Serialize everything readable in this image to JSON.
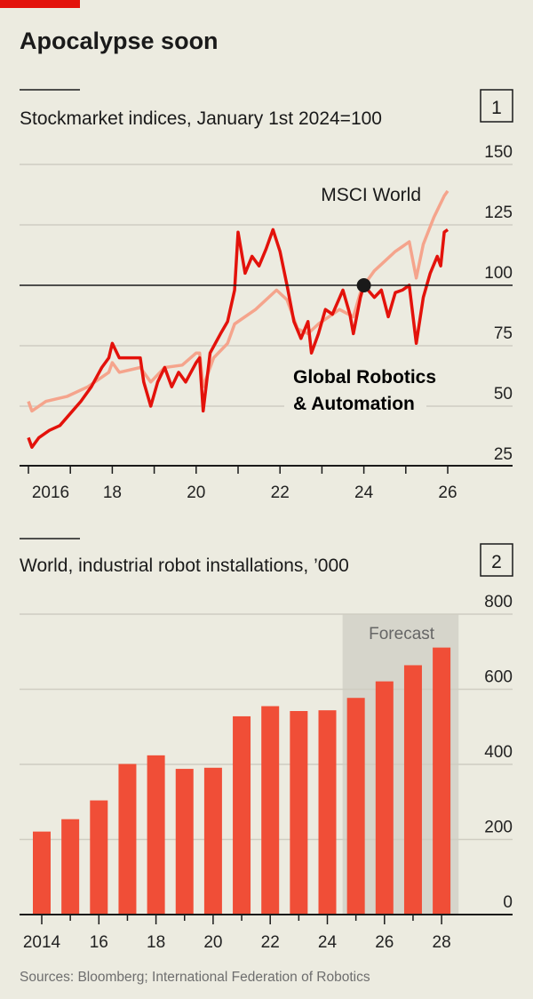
{
  "title": "Apocalypse soon",
  "source": "Sources: Bloomberg; International Federation of Robotics",
  "colors": {
    "background": "#ecebe0",
    "robotics": "#e3120b",
    "msci": "#f5a48c",
    "bars": "#f04e37",
    "forecast_shade": "#d6d5cb",
    "brand_red": "#e3120b"
  },
  "chart_data": [
    {
      "type": "line",
      "number": "1",
      "title": "Stockmarket indices, January 1st 2024=100",
      "ylim": [
        25,
        150
      ],
      "yticks": [
        "150",
        "125",
        "100",
        "75",
        "50",
        "25"
      ],
      "ytick_values": [
        150,
        125,
        100,
        75,
        50,
        25
      ],
      "xticks": [
        "2016",
        "18",
        "20",
        "22",
        "24",
        "26"
      ],
      "xtick_years": [
        2016,
        2018,
        2020,
        2022,
        2024,
        2026
      ],
      "xlim": [
        "2016-01",
        "2026-01"
      ],
      "reference_line": 100,
      "marker": {
        "date": "2024-01",
        "value": 100
      },
      "grid": true,
      "series": [
        {
          "name": "MSCI World",
          "color": "#f5a48c",
          "points": [
            [
              "2016-01",
              52
            ],
            [
              "2016-02",
              48
            ],
            [
              "2016-06",
              52
            ],
            [
              "2016-12",
              54
            ],
            [
              "2017-06",
              58
            ],
            [
              "2017-12",
              64
            ],
            [
              "2018-01",
              68
            ],
            [
              "2018-03",
              64
            ],
            [
              "2018-09",
              66
            ],
            [
              "2018-12",
              60
            ],
            [
              "2019-04",
              66
            ],
            [
              "2019-09",
              67
            ],
            [
              "2020-01",
              72
            ],
            [
              "2020-02",
              72
            ],
            [
              "2020-03",
              58
            ],
            [
              "2020-06",
              70
            ],
            [
              "2020-10",
              76
            ],
            [
              "2020-12",
              84
            ],
            [
              "2021-06",
              90
            ],
            [
              "2021-12",
              98
            ],
            [
              "2022-03",
              94
            ],
            [
              "2022-06",
              82
            ],
            [
              "2022-09",
              80
            ],
            [
              "2022-12",
              84
            ],
            [
              "2023-06",
              90
            ],
            [
              "2023-10",
              87
            ],
            [
              "2023-12",
              97
            ],
            [
              "2024-01",
              100
            ],
            [
              "2024-04",
              106
            ],
            [
              "2024-07",
              110
            ],
            [
              "2024-10",
              114
            ],
            [
              "2024-12",
              116
            ],
            [
              "2025-02",
              118
            ],
            [
              "2025-04",
              103
            ],
            [
              "2025-06",
              117
            ],
            [
              "2025-09",
              128
            ],
            [
              "2025-12",
              137
            ],
            [
              "2026-01",
              139
            ]
          ]
        },
        {
          "name_lines": [
            "Global Robotics",
            "& Automation"
          ],
          "color": "#e3120b",
          "points": [
            [
              "2016-01",
              37
            ],
            [
              "2016-02",
              33
            ],
            [
              "2016-04",
              37
            ],
            [
              "2016-07",
              40
            ],
            [
              "2016-10",
              42
            ],
            [
              "2017-01",
              47
            ],
            [
              "2017-04",
              52
            ],
            [
              "2017-07",
              58
            ],
            [
              "2017-10",
              66
            ],
            [
              "2017-12",
              70
            ],
            [
              "2018-01",
              76
            ],
            [
              "2018-03",
              70
            ],
            [
              "2018-06",
              70
            ],
            [
              "2018-09",
              70
            ],
            [
              "2018-10",
              60
            ],
            [
              "2018-12",
              50
            ],
            [
              "2019-02",
              60
            ],
            [
              "2019-04",
              66
            ],
            [
              "2019-06",
              58
            ],
            [
              "2019-08",
              64
            ],
            [
              "2019-10",
              60
            ],
            [
              "2020-01",
              68
            ],
            [
              "2020-02",
              70
            ],
            [
              "2020-03",
              48
            ],
            [
              "2020-05",
              72
            ],
            [
              "2020-08",
              80
            ],
            [
              "2020-10",
              85
            ],
            [
              "2020-12",
              98
            ],
            [
              "2021-01",
              122
            ],
            [
              "2021-03",
              105
            ],
            [
              "2021-05",
              112
            ],
            [
              "2021-07",
              108
            ],
            [
              "2021-09",
              115
            ],
            [
              "2021-11",
              123
            ],
            [
              "2022-01",
              114
            ],
            [
              "2022-03",
              100
            ],
            [
              "2022-05",
              85
            ],
            [
              "2022-07",
              78
            ],
            [
              "2022-09",
              85
            ],
            [
              "2022-10",
              72
            ],
            [
              "2022-12",
              80
            ],
            [
              "2023-02",
              90
            ],
            [
              "2023-04",
              88
            ],
            [
              "2023-07",
              98
            ],
            [
              "2023-09",
              88
            ],
            [
              "2023-10",
              80
            ],
            [
              "2023-12",
              95
            ],
            [
              "2024-01",
              100
            ],
            [
              "2024-04",
              95
            ],
            [
              "2024-06",
              98
            ],
            [
              "2024-08",
              87
            ],
            [
              "2024-10",
              97
            ],
            [
              "2024-12",
              98
            ],
            [
              "2025-02",
              100
            ],
            [
              "2025-04",
              76
            ],
            [
              "2025-06",
              95
            ],
            [
              "2025-08",
              105
            ],
            [
              "2025-10",
              112
            ],
            [
              "2025-11",
              108
            ],
            [
              "2025-12",
              122
            ],
            [
              "2026-01",
              123
            ]
          ]
        }
      ]
    },
    {
      "type": "bar",
      "number": "2",
      "title": "World, industrial robot installations, ’000",
      "categories": [
        2014,
        2015,
        2016,
        2017,
        2018,
        2019,
        2020,
        2021,
        2022,
        2023,
        2024,
        2025,
        2026,
        2027,
        2028
      ],
      "values": [
        221,
        254,
        304,
        401,
        424,
        388,
        391,
        528,
        555,
        542,
        544,
        577,
        621,
        664,
        711
      ],
      "forecast_from": 2025,
      "forecast_label": "Forecast",
      "ylim": [
        0,
        800
      ],
      "yticks": [
        "800",
        "600",
        "400",
        "200",
        "0"
      ],
      "ytick_values": [
        800,
        600,
        400,
        200,
        0
      ],
      "xticks": [
        "2014",
        "16",
        "18",
        "20",
        "22",
        "24",
        "26",
        "28"
      ],
      "grid": true
    }
  ]
}
